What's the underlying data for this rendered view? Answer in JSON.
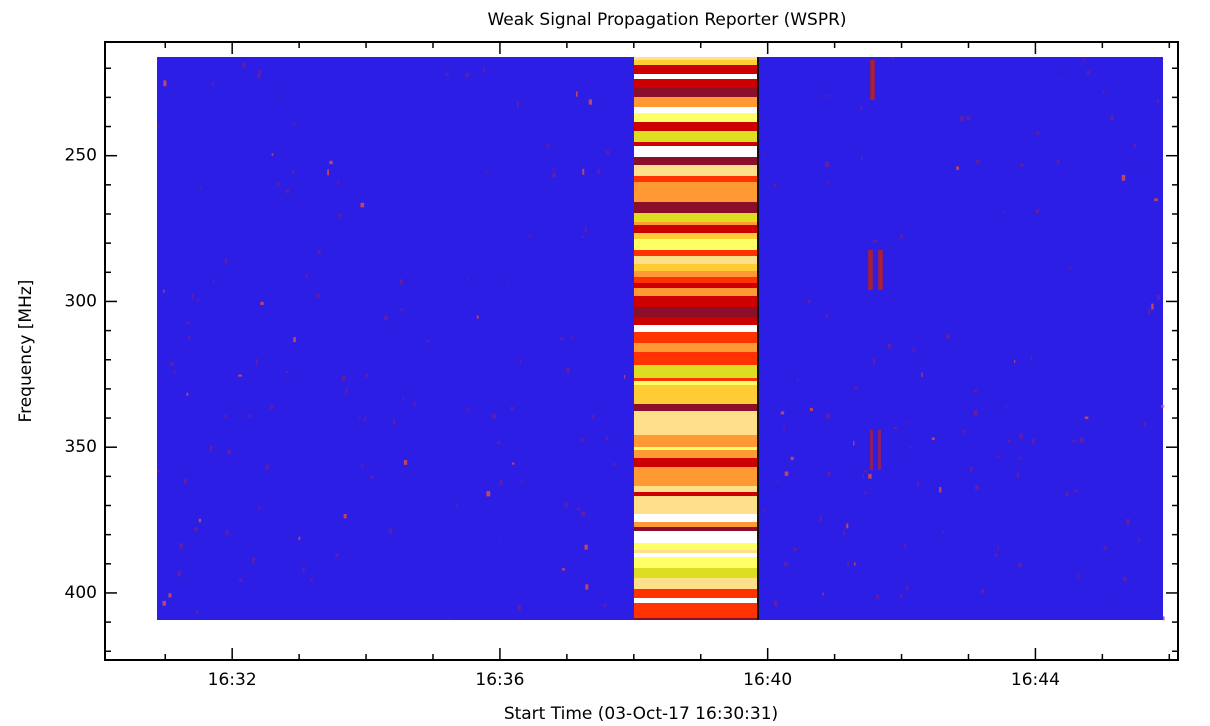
{
  "chart_data": {
    "type": "spectrogram",
    "title": "Weak Signal Propagation Reporter (WSPR)",
    "x_label": "Start Time (03-Oct-17 16:30:31)",
    "y_label": "Frequency [MHz]",
    "xlim": [
      30.1,
      46.13
    ],
    "xticks": [
      {
        "value": 32,
        "label": "16:32"
      },
      {
        "value": 36,
        "label": "16:36"
      },
      {
        "value": 40,
        "label": "16:40"
      },
      {
        "value": 44,
        "label": "16:44"
      }
    ],
    "xminorticks": [
      31,
      33,
      34,
      35,
      37,
      38,
      39,
      41,
      42,
      43,
      45,
      46
    ],
    "ylim": [
      211,
      423
    ],
    "yticks": [
      250,
      300,
      350,
      400
    ],
    "yminorticks": [
      220,
      230,
      240,
      260,
      270,
      280,
      290,
      310,
      320,
      330,
      340,
      360,
      370,
      380,
      390,
      410,
      420
    ],
    "y_inverted": true
  }
}
